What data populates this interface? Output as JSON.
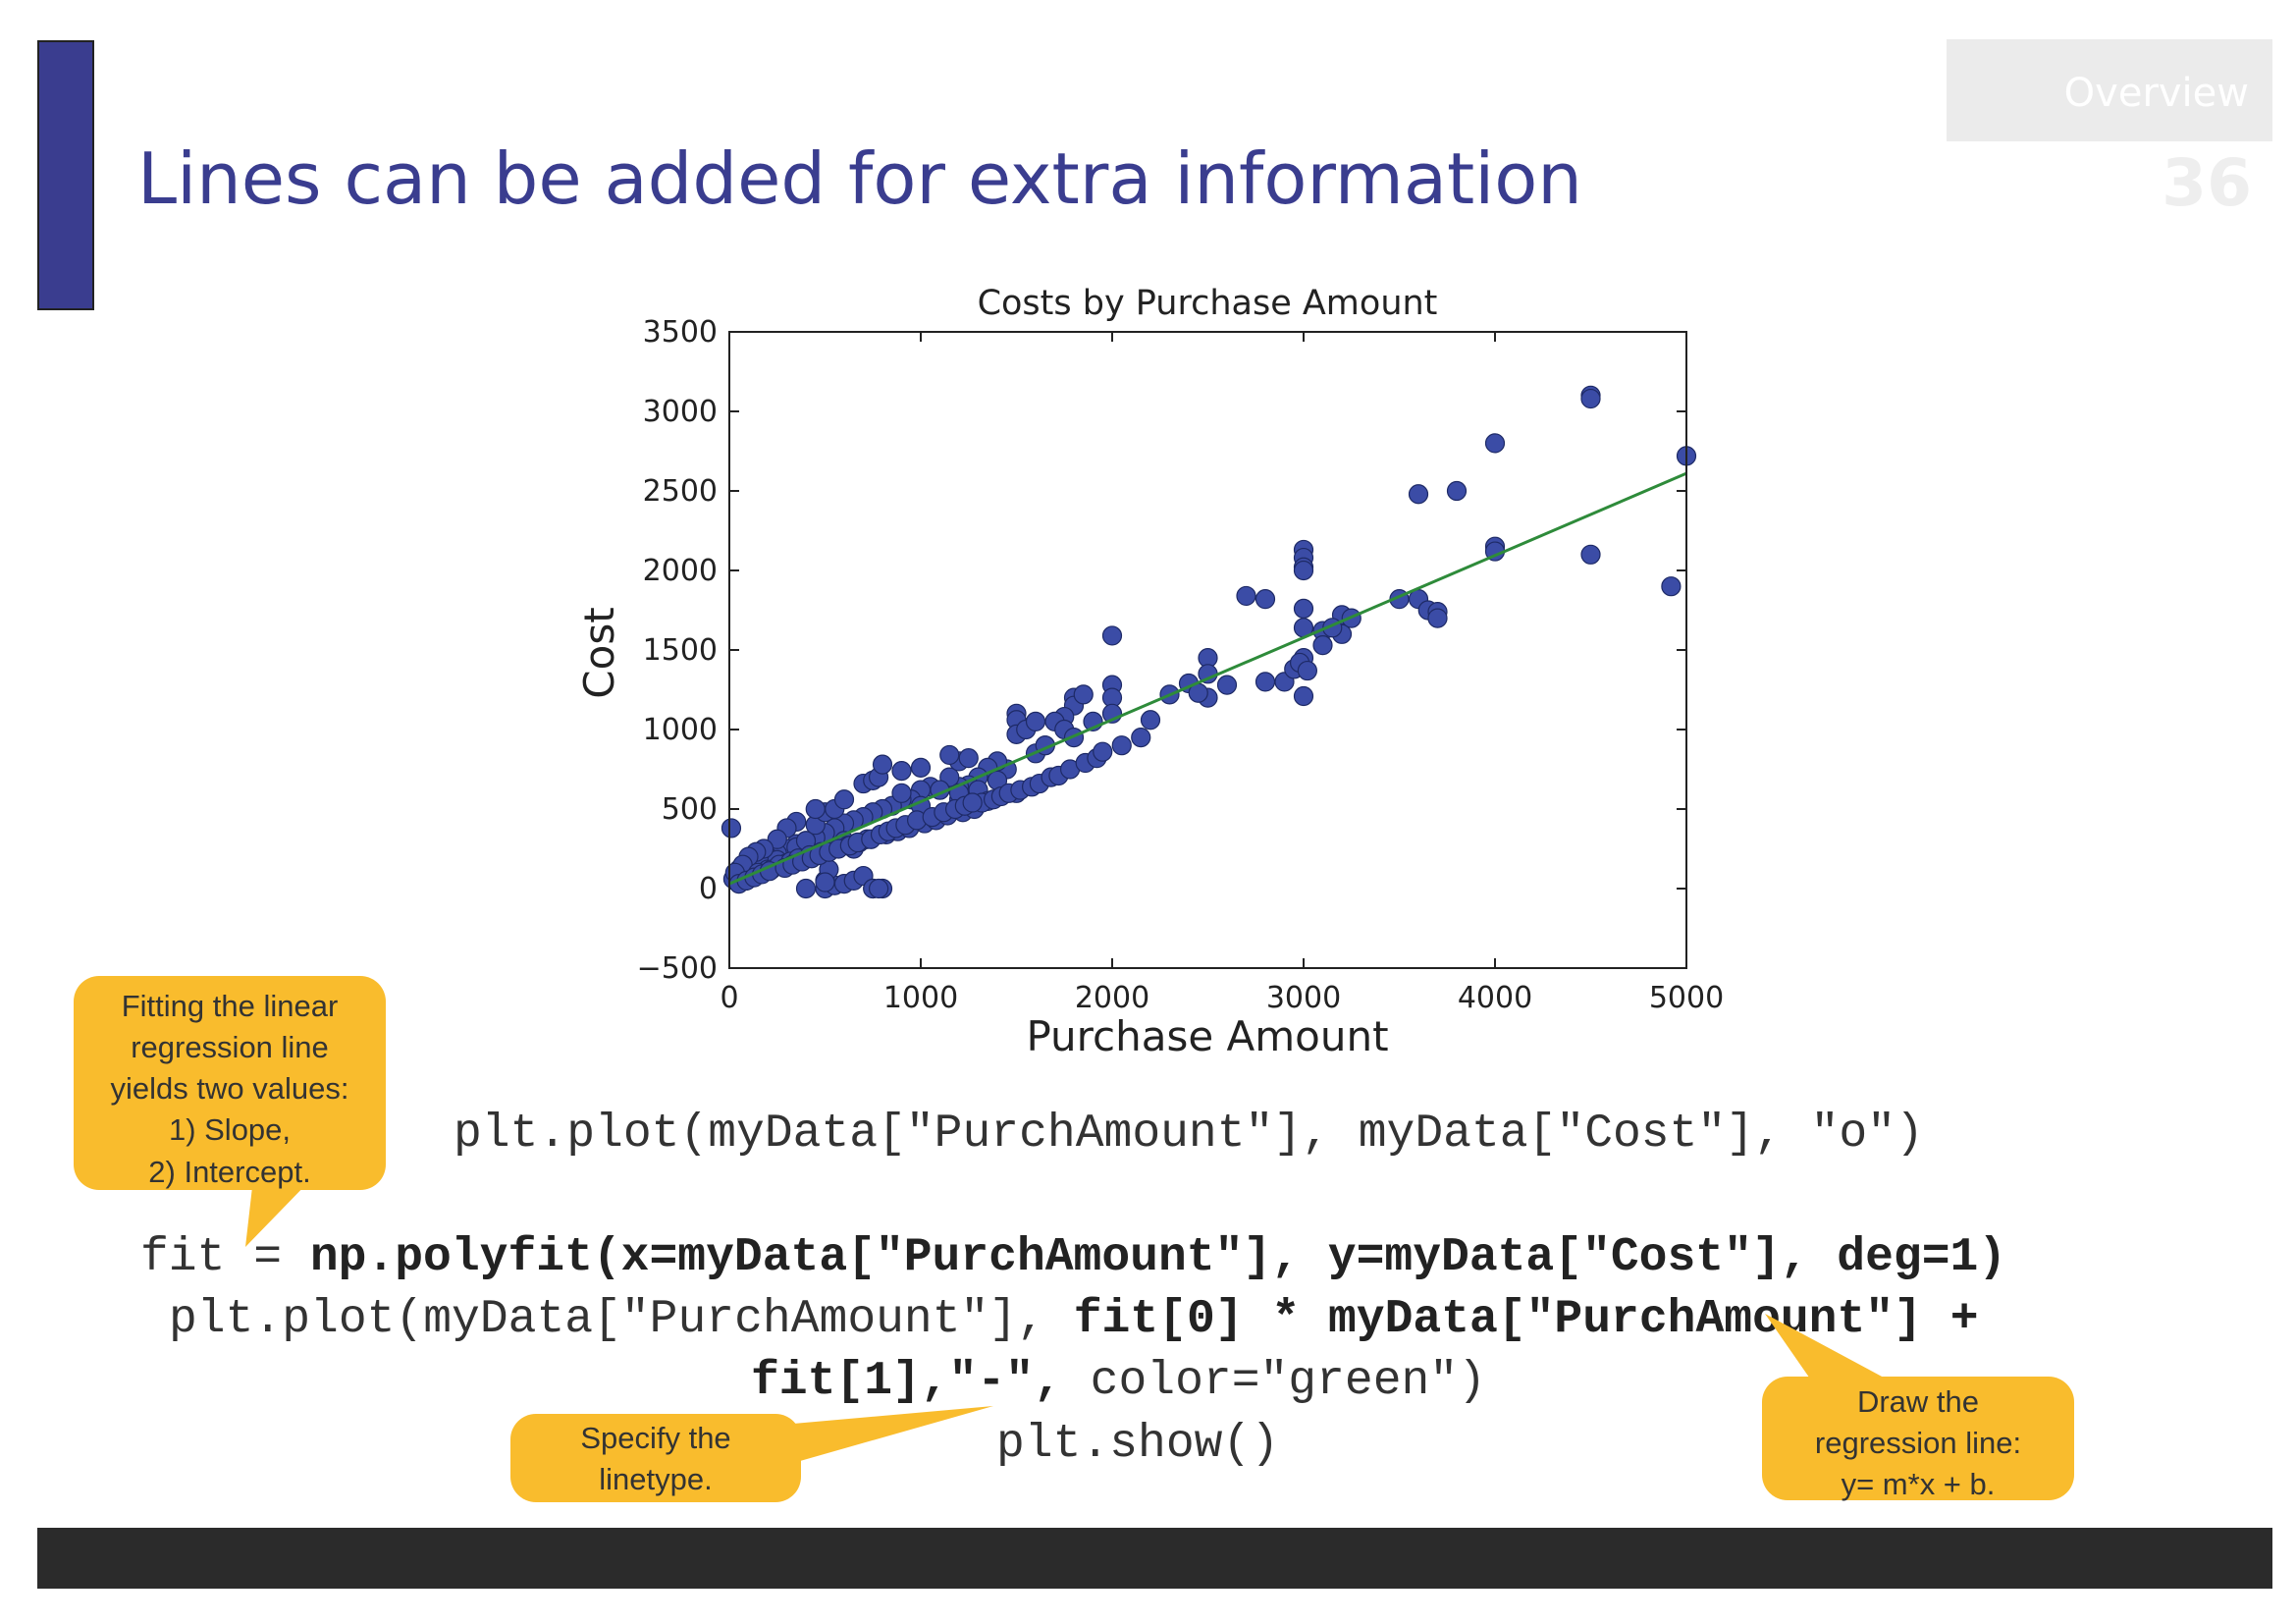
{
  "slide": {
    "title": "Lines can be added for extra information",
    "section": "Overview",
    "page_number": "36"
  },
  "colors": {
    "accent": "#3a3d8f",
    "marker": "#3b4ca6",
    "fit_line": "#2e8b3a",
    "callout": "#f9bc2d"
  },
  "chart_data": {
    "type": "scatter",
    "title": "Costs by Purchase Amount",
    "xlabel": "Purchase Amount",
    "ylabel": "Cost",
    "xlim": [
      0,
      5000
    ],
    "ylim": [
      -500,
      3500
    ],
    "xticks": [
      "0",
      "1000",
      "2000",
      "3000",
      "4000",
      "5000"
    ],
    "yticks": [
      "3500",
      "3000",
      "2500",
      "2000",
      "1500",
      "1000",
      "500",
      "0",
      "−500"
    ],
    "grid": false,
    "legend": "none",
    "series": [
      {
        "marker": "o",
        "x": [
          4500,
          4500,
          5000,
          4000,
          3600,
          3800,
          4500,
          4920,
          4000,
          4000,
          3000,
          3000,
          3000,
          3000,
          3000,
          3000,
          2700,
          2800,
          3200,
          3200,
          3500,
          3600,
          3650,
          3700,
          3000,
          3000,
          2000,
          2500,
          2500,
          2800,
          2400,
          2450,
          2500,
          2200,
          2300,
          2000,
          2000,
          2000,
          1800,
          1800,
          1850,
          1900,
          1750,
          1500,
          1500,
          1500,
          1550,
          1600,
          1650,
          1700,
          1750,
          1800,
          1600,
          1650,
          1450,
          1400,
          1350,
          1300,
          1250,
          1200,
          1150,
          1100,
          1050,
          1000,
          950,
          900,
          850,
          800,
          750,
          700,
          650,
          600,
          550,
          500,
          450,
          400,
          350,
          300,
          250,
          200,
          150,
          100,
          50,
          20,
          60,
          80,
          120,
          180,
          200,
          250,
          300,
          350,
          400,
          450,
          500,
          550,
          600,
          700,
          750,
          780,
          800,
          900,
          1000,
          1200,
          1150,
          1250,
          450,
          350,
          300,
          250,
          180,
          140,
          100,
          70,
          30,
          10,
          400,
          500,
          550,
          600,
          650,
          700,
          750,
          800,
          500,
          520,
          600,
          650,
          500,
          900,
          1200,
          1200,
          1300,
          1400,
          1500,
          1350,
          1000,
          1100,
          150,
          220,
          260,
          320,
          360,
          420,
          480,
          540,
          620,
          680,
          720,
          820,
          880,
          940,
          1020,
          1080,
          1140,
          1220,
          1280,
          1320,
          1380,
          1420,
          1460,
          1520,
          1580,
          1620,
          1680,
          1720,
          1780,
          1860,
          1920,
          1950,
          2050,
          2150,
          50,
          90,
          130,
          170,
          210,
          290,
          330,
          380,
          430,
          470,
          520,
          570,
          630,
          670,
          740,
          790,
          830,
          870,
          920,
          980,
          1060,
          1120,
          1180,
          1230,
          1270,
          750,
          780,
          2600,
          2900,
          2950,
          3100,
          3150,
          3250,
          3700,
          3100,
          2980,
          3020
        ],
        "y": [
          3100,
          3080,
          2720,
          2800,
          2480,
          2500,
          2100,
          1900,
          2150,
          2120,
          2130,
          2080,
          2020,
          2000,
          1760,
          1640,
          1840,
          1820,
          1720,
          1600,
          1820,
          1820,
          1750,
          1740,
          1210,
          1450,
          1590,
          1450,
          1200,
          1300,
          1290,
          1230,
          1350,
          1060,
          1220,
          1280,
          1200,
          1100,
          1200,
          1150,
          1220,
          1050,
          1080,
          1100,
          1060,
          970,
          1000,
          1050,
          900,
          1050,
          1000,
          950,
          850,
          900,
          750,
          800,
          760,
          700,
          650,
          640,
          700,
          620,
          640,
          620,
          560,
          560,
          520,
          500,
          480,
          450,
          430,
          410,
          380,
          350,
          320,
          300,
          280,
          250,
          220,
          200,
          180,
          150,
          120,
          60,
          90,
          110,
          140,
          160,
          120,
          180,
          160,
          260,
          300,
          400,
          480,
          500,
          560,
          660,
          680,
          700,
          780,
          740,
          760,
          800,
          840,
          820,
          500,
          420,
          380,
          310,
          250,
          230,
          200,
          150,
          100,
          380,
          0,
          0,
          20,
          30,
          50,
          80,
          0,
          0,
          50,
          120,
          300,
          250,
          40,
          600,
          560,
          600,
          620,
          680,
          600,
          550,
          520,
          620,
          100,
          120,
          150,
          170,
          190,
          210,
          230,
          250,
          270,
          290,
          310,
          340,
          360,
          380,
          410,
          430,
          460,
          480,
          500,
          540,
          560,
          580,
          600,
          620,
          640,
          660,
          700,
          710,
          750,
          790,
          820,
          860,
          900,
          950,
          30,
          50,
          70,
          90,
          110,
          130,
          150,
          170,
          190,
          210,
          230,
          250,
          270,
          290,
          310,
          340,
          360,
          380,
          400,
          430,
          450,
          480,
          500,
          520,
          540,
          0,
          0,
          1280,
          1300,
          1380,
          1620,
          1640,
          1700,
          1700,
          1530,
          1420,
          1370
        ]
      }
    ],
    "fit_line": {
      "style": "-",
      "color": "green",
      "x": [
        0,
        5000
      ],
      "y": [
        30,
        2610
      ]
    }
  },
  "code": {
    "line1": "plt.plot(myData[\"PurchAmount\"], myData[\"Cost\"], \"o\")",
    "line2_plain": "fit = ",
    "line2_bold": "np.polyfit(x=myData[\"PurchAmount\"], y=myData[\"Cost\"], deg=1)",
    "line3_plain": "plt.plot(myData[\"PurchAmount\"], ",
    "line3_bold": "fit[0] * myData[\"PurchAmount\"] +",
    "line4_bold": "fit[1],\"-\",",
    "line4_plain": " color=\"green\")",
    "line5": "plt.show()"
  },
  "callouts": {
    "fit": [
      "Fitting the linear",
      "regression line",
      "yields two values:",
      "1) Slope,",
      "2) Intercept."
    ],
    "linetype": [
      "Specify the",
      "linetype."
    ],
    "regression": [
      "Draw the",
      "regression line:",
      "y= m*x + b."
    ]
  }
}
